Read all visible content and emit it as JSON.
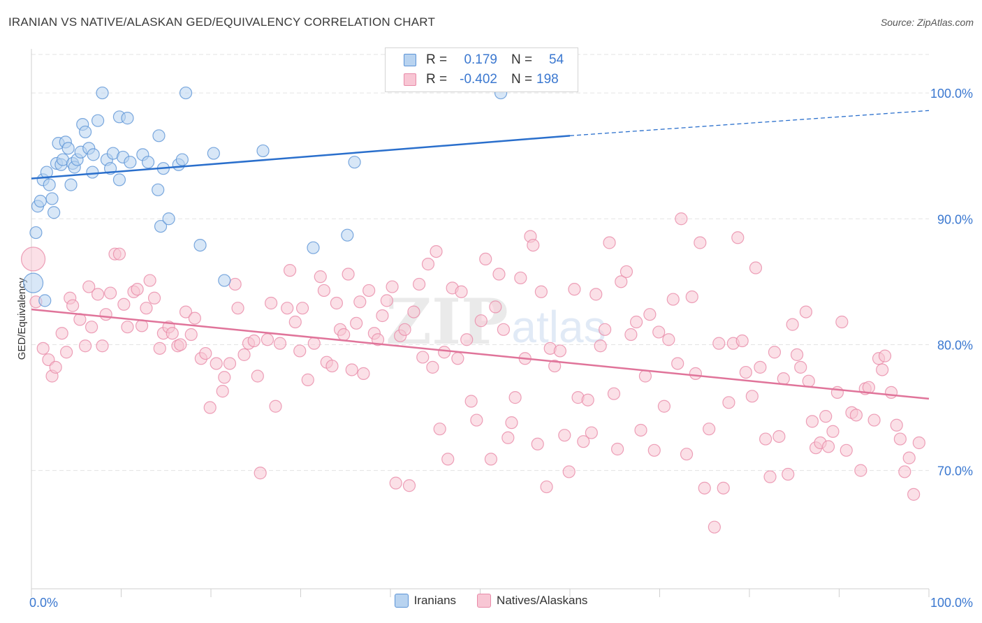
{
  "header": {
    "title": "IRANIAN VS NATIVE/ALASKAN GED/EQUIVALENCY CORRELATION CHART",
    "source": "Source: ZipAtlas.com"
  },
  "stats": {
    "r_label": "R =",
    "n_label": "N =",
    "iranians": {
      "r": "0.179",
      "n": "54"
    },
    "natives": {
      "r": "-0.402",
      "n": "198"
    }
  },
  "legend": {
    "iranians": "Iranians",
    "natives": "Natives/Alaskans"
  },
  "colors": {
    "iranians_fill": "#b8d3f0",
    "iranians_stroke": "#5b93d6",
    "iranians_line": "#2a6fcc",
    "natives_fill": "#f8c6d4",
    "natives_stroke": "#e88aa8",
    "natives_line": "#e0749a",
    "axis_label_blue": "#3b78d0"
  },
  "chart_data": {
    "type": "scatter",
    "title": "IRANIAN VS NATIVE/ALASKAN GED/EQUIVALENCY CORRELATION CHART",
    "xlabel": "",
    "ylabel": "GED/Equivalency",
    "x_tick_labels": [
      "0.0%",
      "100.0%"
    ],
    "y_tick_labels": [
      "70.0%",
      "80.0%",
      "90.0%",
      "100.0%"
    ],
    "y_ticks": [
      70,
      80,
      90,
      100
    ],
    "xlim": [
      0,
      100
    ],
    "ylim": [
      60.6,
      103.5
    ],
    "grid": true,
    "watermark": "ZIPatlas",
    "series": [
      {
        "name": "Iranians",
        "trend": {
          "x0": 0,
          "y0": 93.2,
          "x1": 60,
          "y1": 96.6,
          "dashed_to_x": 100,
          "dashed_to_y": 98.6
        },
        "points": [
          [
            0.2,
            84.9
          ],
          [
            0.5,
            88.9
          ],
          [
            0.7,
            91.0
          ],
          [
            1.0,
            91.4
          ],
          [
            1.3,
            93.1
          ],
          [
            1.5,
            83.5
          ],
          [
            1.7,
            93.7
          ],
          [
            2.0,
            92.7
          ],
          [
            2.3,
            91.6
          ],
          [
            2.5,
            90.5
          ],
          [
            2.8,
            94.4
          ],
          [
            3.0,
            96.0
          ],
          [
            3.3,
            94.3
          ],
          [
            3.5,
            94.7
          ],
          [
            3.8,
            96.1
          ],
          [
            4.1,
            95.6
          ],
          [
            4.4,
            92.7
          ],
          [
            4.6,
            94.4
          ],
          [
            4.8,
            94.1
          ],
          [
            5.1,
            94.7
          ],
          [
            5.5,
            95.3
          ],
          [
            5.7,
            97.5
          ],
          [
            6.0,
            96.9
          ],
          [
            6.4,
            95.6
          ],
          [
            6.8,
            93.7
          ],
          [
            6.9,
            95.1
          ],
          [
            7.4,
            97.8
          ],
          [
            7.9,
            100.0
          ],
          [
            8.4,
            94.7
          ],
          [
            8.8,
            94.0
          ],
          [
            9.1,
            95.2
          ],
          [
            9.8,
            93.1
          ],
          [
            9.8,
            98.1
          ],
          [
            10.2,
            94.9
          ],
          [
            10.7,
            98.0
          ],
          [
            11.0,
            94.5
          ],
          [
            12.4,
            95.1
          ],
          [
            13.0,
            94.5
          ],
          [
            14.1,
            92.3
          ],
          [
            14.2,
            96.6
          ],
          [
            14.4,
            89.4
          ],
          [
            14.7,
            94.0
          ],
          [
            15.3,
            90.0
          ],
          [
            16.4,
            94.3
          ],
          [
            16.8,
            94.7
          ],
          [
            17.2,
            100.0
          ],
          [
            18.8,
            87.9
          ],
          [
            20.3,
            95.2
          ],
          [
            21.5,
            85.1
          ],
          [
            25.8,
            95.4
          ],
          [
            31.4,
            87.7
          ],
          [
            35.2,
            88.7
          ],
          [
            36.0,
            94.5
          ],
          [
            52.3,
            100.0
          ]
        ]
      },
      {
        "name": "Natives/Alaskans",
        "trend": {
          "x0": 0,
          "y0": 82.8,
          "x1": 100,
          "y1": 75.7
        },
        "points": [
          [
            0.2,
            86.8
          ],
          [
            0.5,
            83.4
          ],
          [
            1.3,
            79.7
          ],
          [
            1.9,
            78.8
          ],
          [
            2.3,
            77.5
          ],
          [
            2.7,
            78.2
          ],
          [
            3.4,
            80.9
          ],
          [
            3.9,
            79.4
          ],
          [
            4.3,
            83.7
          ],
          [
            4.6,
            83.1
          ],
          [
            5.4,
            82.0
          ],
          [
            6.0,
            79.9
          ],
          [
            6.4,
            84.6
          ],
          [
            6.7,
            81.4
          ],
          [
            7.4,
            84.0
          ],
          [
            7.9,
            79.9
          ],
          [
            8.3,
            82.4
          ],
          [
            8.8,
            84.1
          ],
          [
            9.3,
            87.2
          ],
          [
            9.8,
            87.2
          ],
          [
            10.3,
            83.2
          ],
          [
            10.7,
            81.4
          ],
          [
            11.4,
            84.2
          ],
          [
            11.8,
            84.4
          ],
          [
            12.3,
            81.5
          ],
          [
            12.8,
            82.9
          ],
          [
            13.2,
            85.1
          ],
          [
            13.7,
            83.7
          ],
          [
            14.3,
            79.7
          ],
          [
            14.7,
            80.9
          ],
          [
            15.3,
            81.4
          ],
          [
            15.7,
            80.9
          ],
          [
            16.3,
            79.9
          ],
          [
            16.6,
            80.0
          ],
          [
            17.2,
            82.6
          ],
          [
            17.8,
            80.8
          ],
          [
            18.2,
            82.1
          ],
          [
            18.9,
            78.9
          ],
          [
            19.4,
            79.3
          ],
          [
            19.9,
            75.0
          ],
          [
            20.6,
            78.5
          ],
          [
            21.3,
            76.3
          ],
          [
            21.5,
            77.4
          ],
          [
            22.1,
            78.5
          ],
          [
            22.7,
            84.8
          ],
          [
            23.0,
            82.9
          ],
          [
            23.7,
            79.2
          ],
          [
            24.2,
            80.1
          ],
          [
            24.8,
            80.3
          ],
          [
            25.2,
            77.5
          ],
          [
            25.5,
            69.8
          ],
          [
            26.3,
            80.4
          ],
          [
            26.7,
            83.3
          ],
          [
            27.2,
            75.1
          ],
          [
            27.7,
            80.1
          ],
          [
            28.5,
            82.9
          ],
          [
            28.8,
            85.9
          ],
          [
            29.4,
            81.8
          ],
          [
            29.9,
            79.5
          ],
          [
            30.2,
            82.9
          ],
          [
            30.8,
            77.2
          ],
          [
            31.5,
            80.1
          ],
          [
            32.2,
            85.4
          ],
          [
            32.6,
            84.3
          ],
          [
            32.9,
            78.6
          ],
          [
            33.5,
            78.3
          ],
          [
            34.0,
            83.3
          ],
          [
            34.4,
            81.2
          ],
          [
            34.8,
            80.8
          ],
          [
            35.3,
            85.6
          ],
          [
            35.7,
            78.0
          ],
          [
            36.2,
            81.7
          ],
          [
            36.6,
            83.4
          ],
          [
            37.0,
            77.7
          ],
          [
            37.6,
            84.3
          ],
          [
            38.2,
            80.9
          ],
          [
            38.6,
            80.4
          ],
          [
            39.1,
            82.3
          ],
          [
            39.6,
            83.5
          ],
          [
            40.2,
            84.6
          ],
          [
            40.6,
            69.0
          ],
          [
            41.1,
            80.7
          ],
          [
            41.6,
            81.2
          ],
          [
            42.1,
            68.8
          ],
          [
            42.6,
            82.6
          ],
          [
            43.2,
            84.8
          ],
          [
            43.6,
            79.0
          ],
          [
            44.2,
            86.4
          ],
          [
            44.7,
            78.2
          ],
          [
            45.1,
            87.4
          ],
          [
            45.5,
            73.3
          ],
          [
            46.0,
            79.4
          ],
          [
            46.4,
            70.9
          ],
          [
            46.9,
            84.5
          ],
          [
            47.5,
            78.9
          ],
          [
            47.9,
            84.2
          ],
          [
            48.5,
            80.4
          ],
          [
            49.0,
            75.5
          ],
          [
            49.6,
            74.0
          ],
          [
            50.1,
            81.9
          ],
          [
            50.6,
            86.8
          ],
          [
            51.2,
            70.9
          ],
          [
            51.7,
            83.0
          ],
          [
            52.1,
            85.6
          ],
          [
            52.6,
            81.2
          ],
          [
            53.1,
            72.6
          ],
          [
            53.5,
            73.8
          ],
          [
            53.9,
            75.8
          ],
          [
            54.5,
            85.3
          ],
          [
            55.0,
            78.9
          ],
          [
            55.6,
            88.6
          ],
          [
            55.9,
            87.9
          ],
          [
            56.4,
            72.1
          ],
          [
            56.8,
            84.2
          ],
          [
            57.4,
            68.7
          ],
          [
            57.8,
            79.7
          ],
          [
            58.3,
            78.3
          ],
          [
            58.9,
            79.5
          ],
          [
            59.4,
            72.8
          ],
          [
            59.9,
            69.9
          ],
          [
            60.5,
            84.4
          ],
          [
            60.9,
            75.8
          ],
          [
            61.5,
            72.3
          ],
          [
            62.0,
            75.6
          ],
          [
            62.4,
            73.0
          ],
          [
            62.9,
            84.0
          ],
          [
            63.4,
            79.9
          ],
          [
            63.9,
            81.2
          ],
          [
            64.4,
            88.1
          ],
          [
            64.9,
            76.1
          ],
          [
            65.3,
            71.7
          ],
          [
            65.7,
            85.0
          ],
          [
            66.3,
            85.8
          ],
          [
            66.8,
            80.8
          ],
          [
            67.4,
            81.8
          ],
          [
            67.9,
            73.2
          ],
          [
            68.4,
            77.5
          ],
          [
            68.9,
            82.4
          ],
          [
            69.4,
            71.6
          ],
          [
            69.9,
            81.0
          ],
          [
            70.5,
            75.1
          ],
          [
            71.0,
            80.4
          ],
          [
            71.5,
            83.6
          ],
          [
            72.0,
            78.5
          ],
          [
            72.4,
            90.0
          ],
          [
            73.0,
            71.3
          ],
          [
            73.6,
            83.8
          ],
          [
            74.0,
            77.7
          ],
          [
            74.5,
            88.1
          ],
          [
            75.0,
            68.6
          ],
          [
            75.5,
            73.3
          ],
          [
            76.1,
            65.5
          ],
          [
            76.6,
            80.1
          ],
          [
            77.1,
            68.6
          ],
          [
            77.7,
            75.4
          ],
          [
            78.2,
            80.1
          ],
          [
            78.7,
            88.5
          ],
          [
            79.2,
            80.3
          ],
          [
            79.6,
            77.8
          ],
          [
            80.3,
            75.9
          ],
          [
            80.7,
            86.1
          ],
          [
            81.2,
            78.2
          ],
          [
            81.8,
            72.5
          ],
          [
            82.3,
            69.5
          ],
          [
            82.8,
            79.4
          ],
          [
            83.3,
            72.7
          ],
          [
            83.8,
            77.3
          ],
          [
            84.3,
            69.7
          ],
          [
            84.8,
            81.6
          ],
          [
            85.3,
            79.2
          ],
          [
            85.7,
            78.2
          ],
          [
            86.3,
            82.6
          ],
          [
            86.6,
            77.1
          ],
          [
            87.0,
            73.9
          ],
          [
            87.4,
            71.8
          ],
          [
            87.9,
            72.2
          ],
          [
            88.5,
            74.3
          ],
          [
            88.8,
            71.9
          ],
          [
            89.3,
            73.1
          ],
          [
            89.8,
            76.2
          ],
          [
            90.3,
            81.8
          ],
          [
            90.8,
            71.6
          ],
          [
            91.4,
            74.6
          ],
          [
            91.9,
            74.4
          ],
          [
            92.4,
            70.0
          ],
          [
            92.9,
            76.5
          ],
          [
            93.3,
            76.6
          ],
          [
            93.9,
            74.0
          ],
          [
            94.4,
            78.9
          ],
          [
            94.8,
            78.0
          ],
          [
            95.1,
            79.1
          ],
          [
            95.8,
            76.2
          ],
          [
            96.4,
            73.6
          ],
          [
            96.8,
            72.5
          ],
          [
            97.3,
            69.9
          ],
          [
            97.8,
            71.0
          ],
          [
            98.3,
            68.1
          ],
          [
            98.9,
            72.2
          ]
        ]
      }
    ]
  }
}
